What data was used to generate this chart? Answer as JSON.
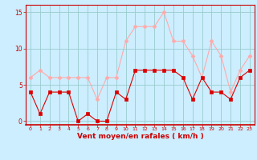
{
  "x": [
    0,
    1,
    2,
    3,
    4,
    5,
    6,
    7,
    8,
    9,
    10,
    11,
    12,
    13,
    14,
    15,
    16,
    17,
    18,
    19,
    20,
    21,
    22,
    23
  ],
  "vent_moyen": [
    4,
    1,
    4,
    4,
    4,
    0,
    1,
    0,
    0,
    4,
    3,
    7,
    7,
    7,
    7,
    7,
    6,
    3,
    6,
    4,
    4,
    3,
    6,
    7
  ],
  "rafales": [
    6,
    7,
    6,
    6,
    6,
    6,
    6,
    3,
    6,
    6,
    11,
    13,
    13,
    13,
    15,
    11,
    11,
    9,
    6,
    11,
    9,
    4,
    7,
    9
  ],
  "color_moyen": "#dd0000",
  "color_rafales": "#ffaaaa",
  "bg_color": "#cceeff",
  "grid_color": "#99cccc",
  "xlabel": "Vent moyen/en rafales ( km/h )",
  "xlabel_color": "#cc0000",
  "tick_color": "#cc0000",
  "spine_color": "#cc0000",
  "ylim": [
    -0.5,
    16
  ],
  "yticks": [
    0,
    5,
    10,
    15
  ],
  "xlim": [
    -0.5,
    23.5
  ],
  "marker_size": 2.5
}
